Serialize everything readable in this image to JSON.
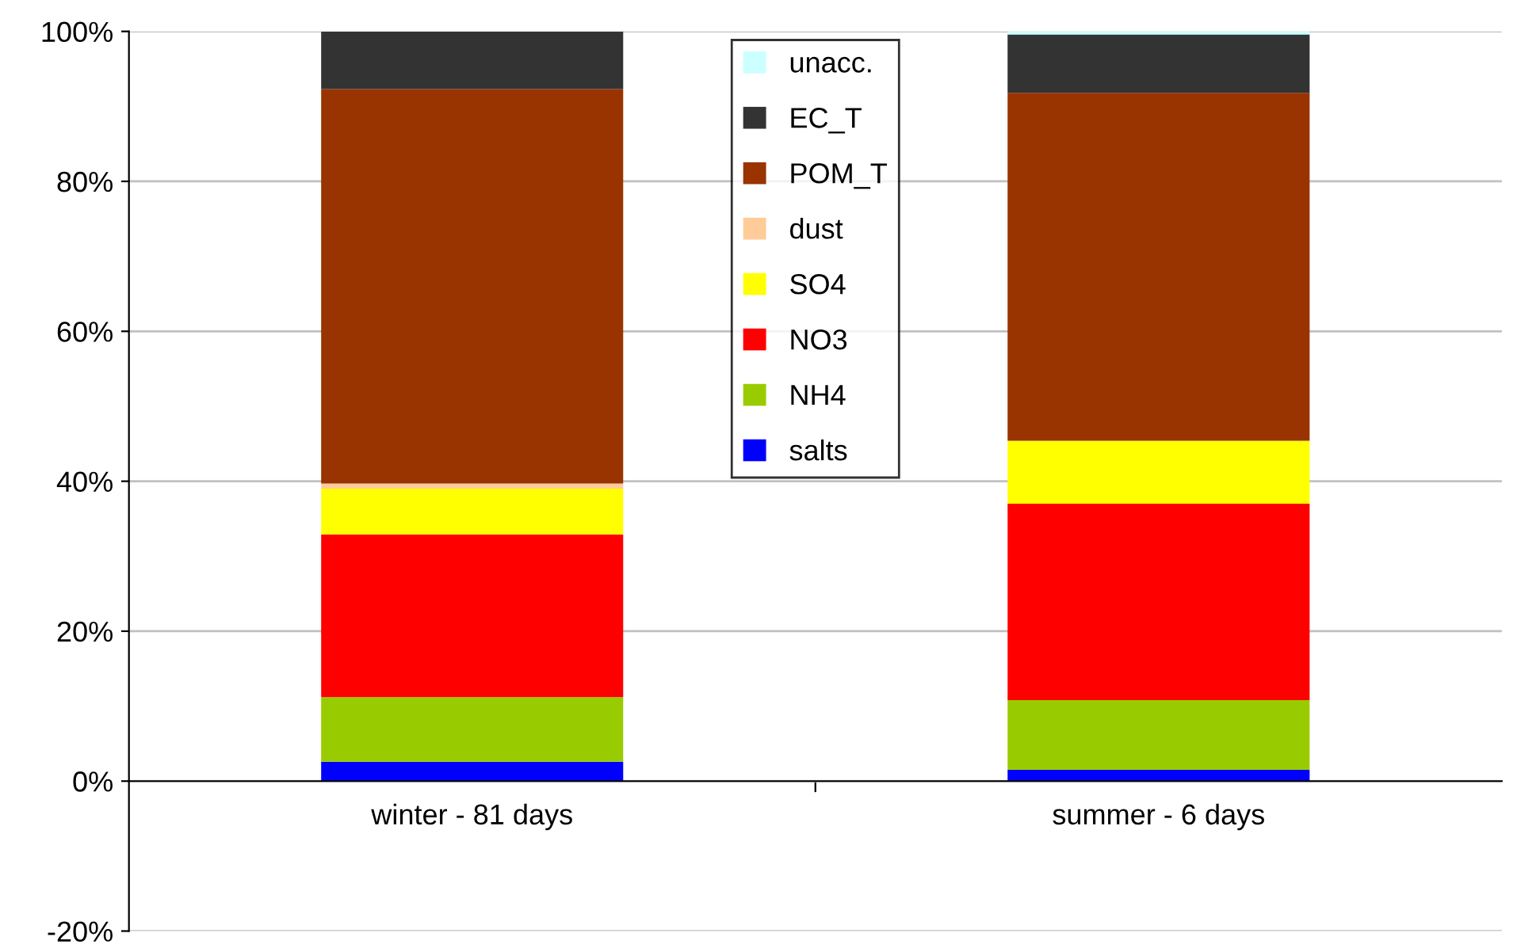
{
  "chart_data": {
    "type": "bar",
    "stacked": true,
    "categories": [
      "winter - 81 days",
      "summer - 6 days"
    ],
    "series": [
      {
        "name": "salts",
        "color": "#0000ff",
        "values": [
          2.6,
          1.5
        ]
      },
      {
        "name": "NH4",
        "color": "#99cc00",
        "values": [
          8.6,
          9.3
        ]
      },
      {
        "name": "NO3",
        "color": "#ff0000",
        "values": [
          21.7,
          26.2
        ]
      },
      {
        "name": "SO4",
        "color": "#ffff00",
        "values": [
          6.1,
          8.4
        ]
      },
      {
        "name": "dust",
        "color": "#ffcc99",
        "values": [
          0.7,
          0
        ]
      },
      {
        "name": "POM_T",
        "color": "#993300",
        "values": [
          52.6,
          46.4
        ]
      },
      {
        "name": "EC_T",
        "color": "#333333",
        "values": [
          7.7,
          7.8
        ]
      },
      {
        "name": "unacc.",
        "color": "#ccffff",
        "values": [
          0,
          0.4
        ]
      }
    ],
    "ylim": [
      -20,
      100
    ],
    "yticks": [
      {
        "value": -20,
        "label": "-20%"
      },
      {
        "value": 0,
        "label": "0%"
      },
      {
        "value": 20,
        "label": "20%"
      },
      {
        "value": 40,
        "label": "40%"
      },
      {
        "value": 60,
        "label": "60%"
      },
      {
        "value": 80,
        "label": "80%"
      },
      {
        "value": 100,
        "label": "100%"
      }
    ],
    "grid": "y",
    "legend": "top"
  }
}
